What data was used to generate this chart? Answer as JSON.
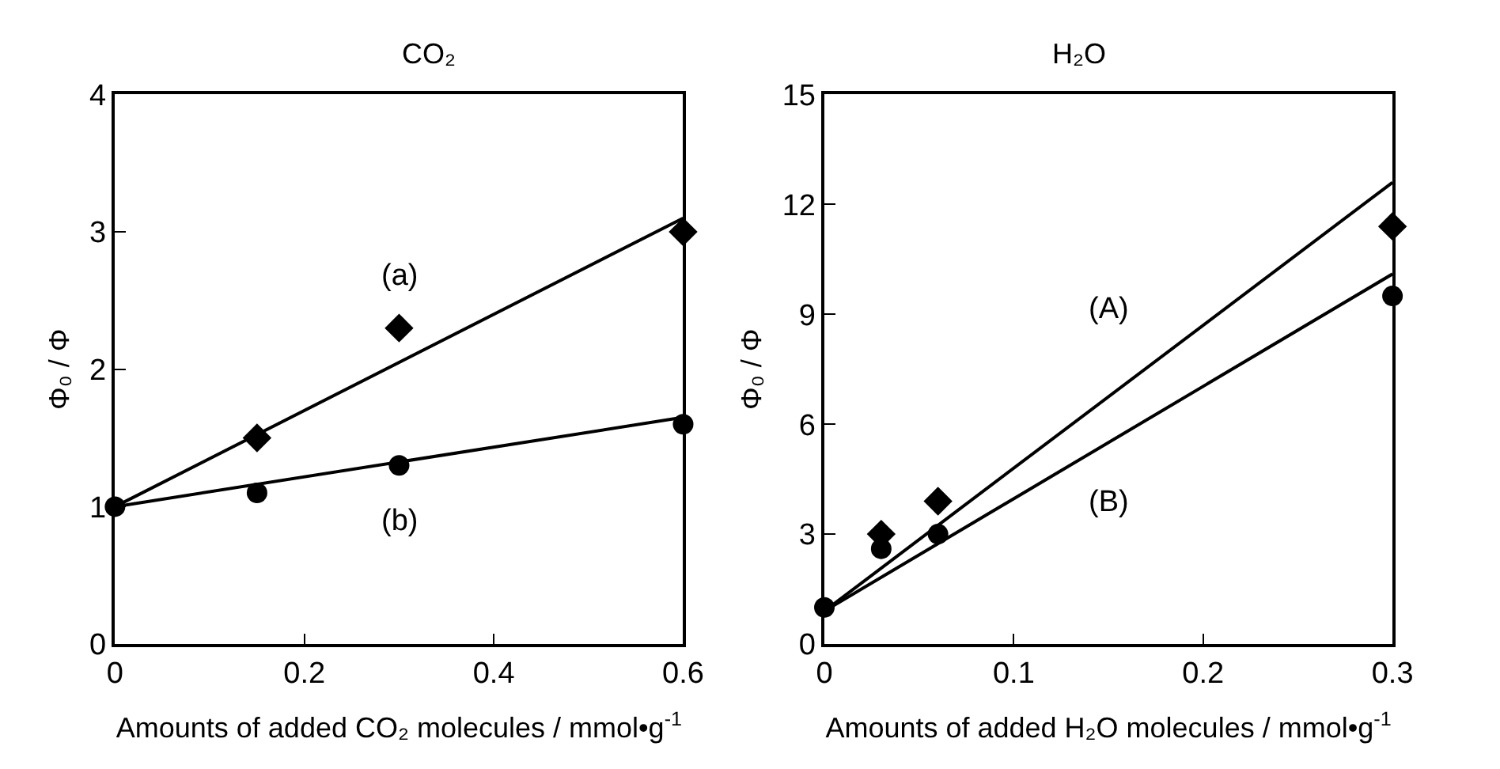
{
  "chart_data": [
    {
      "type": "scatter",
      "title": "CO₂",
      "xlabel": "Amounts of added CO₂ molecules / mmol•g$^{-1}$",
      "ylabel": "Φ₀ / Φ",
      "xlim": [
        0,
        0.6
      ],
      "xticks": [
        0,
        0.2,
        0.4,
        0.6
      ],
      "ylim": [
        0,
        4
      ],
      "yticks": [
        0,
        1,
        2,
        3,
        4
      ],
      "grid": false,
      "legend": false,
      "series": [
        {
          "type": "scatter",
          "marker": "diamond",
          "color": "#000000",
          "x": [
            0.15,
            0.3,
            0.6
          ],
          "values": [
            1.5,
            2.3,
            3.0
          ]
        },
        {
          "type": "scatter",
          "marker": "circle",
          "color": "#000000",
          "x": [
            0,
            0.15,
            0.3,
            0.6
          ],
          "values": [
            1,
            1.1,
            1.3,
            1.6
          ]
        },
        {
          "type": "line",
          "name": "(a)",
          "marker": "none",
          "line_style": "solid",
          "color": "#000000",
          "x": [
            0,
            0.6
          ],
          "values": [
            1,
            3.1
          ]
        },
        {
          "type": "line",
          "name": "(b)",
          "marker": "none",
          "line_style": "solid",
          "color": "#000000",
          "x": [
            0,
            0.6
          ],
          "values": [
            1,
            1.65
          ]
        }
      ]
    },
    {
      "type": "scatter",
      "title": "H₂O",
      "xlabel": "Amounts of added H₂O molecules / mmol•g$^{-1}$",
      "ylabel": "Φ₀ / Φ",
      "xlim": [
        0,
        0.3
      ],
      "xticks": [
        0,
        0.1,
        0.2,
        0.3
      ],
      "ylim": [
        0,
        15
      ],
      "yticks": [
        0,
        3,
        6,
        9,
        12,
        15
      ],
      "grid": false,
      "legend": false,
      "series": [
        {
          "type": "scatter",
          "marker": "diamond",
          "color": "#000000",
          "x": [
            0.03,
            0.06,
            0.3
          ],
          "values": [
            3.0,
            3.9,
            11.4
          ]
        },
        {
          "type": "scatter",
          "marker": "circle",
          "color": "#000000",
          "x": [
            0,
            0.03,
            0.06,
            0.3
          ],
          "values": [
            1,
            2.6,
            3.0,
            9.5
          ]
        },
        {
          "type": "line",
          "name": "(A)",
          "marker": "none",
          "line_style": "solid",
          "color": "#000000",
          "x": [
            0,
            0.3
          ],
          "values": [
            0.9,
            12.6
          ]
        },
        {
          "type": "line",
          "name": "(B)",
          "marker": "none",
          "line_style": "solid",
          "color": "#000000",
          "x": [
            0,
            0.3
          ],
          "values": [
            0.9,
            10.1
          ]
        }
      ]
    }
  ]
}
